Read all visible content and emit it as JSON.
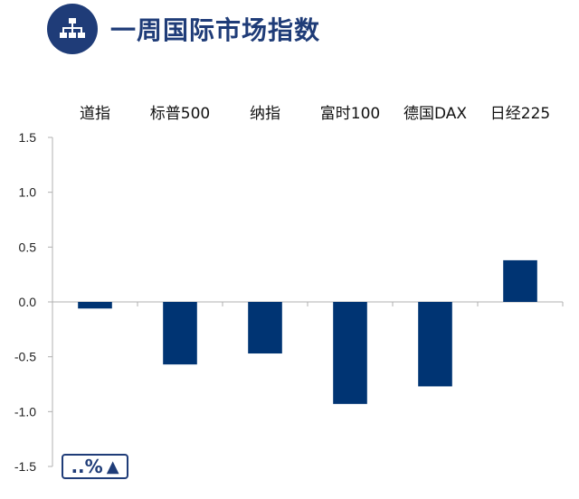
{
  "header": {
    "title": "一周国际市场指数",
    "icon": "sitemap-icon",
    "brand_color": "#1f3c78"
  },
  "unit_label": "..%",
  "unit_icon": "triangle-up-icon",
  "chart_data": {
    "type": "bar",
    "categories": [
      "道指",
      "标普500",
      "纳指",
      "富时100",
      "德国DAX",
      "日经225"
    ],
    "values": [
      -0.06,
      -0.57,
      -0.47,
      -0.93,
      -0.77,
      0.38
    ],
    "ylim": [
      -1.5,
      1.5
    ],
    "yticks": [
      "1.5",
      "1.0",
      "0.5",
      "0.0",
      "-0.5",
      "-1.0",
      "-1.5"
    ],
    "category_labels_position": "top",
    "bar_color": "#003473",
    "grid": false
  }
}
